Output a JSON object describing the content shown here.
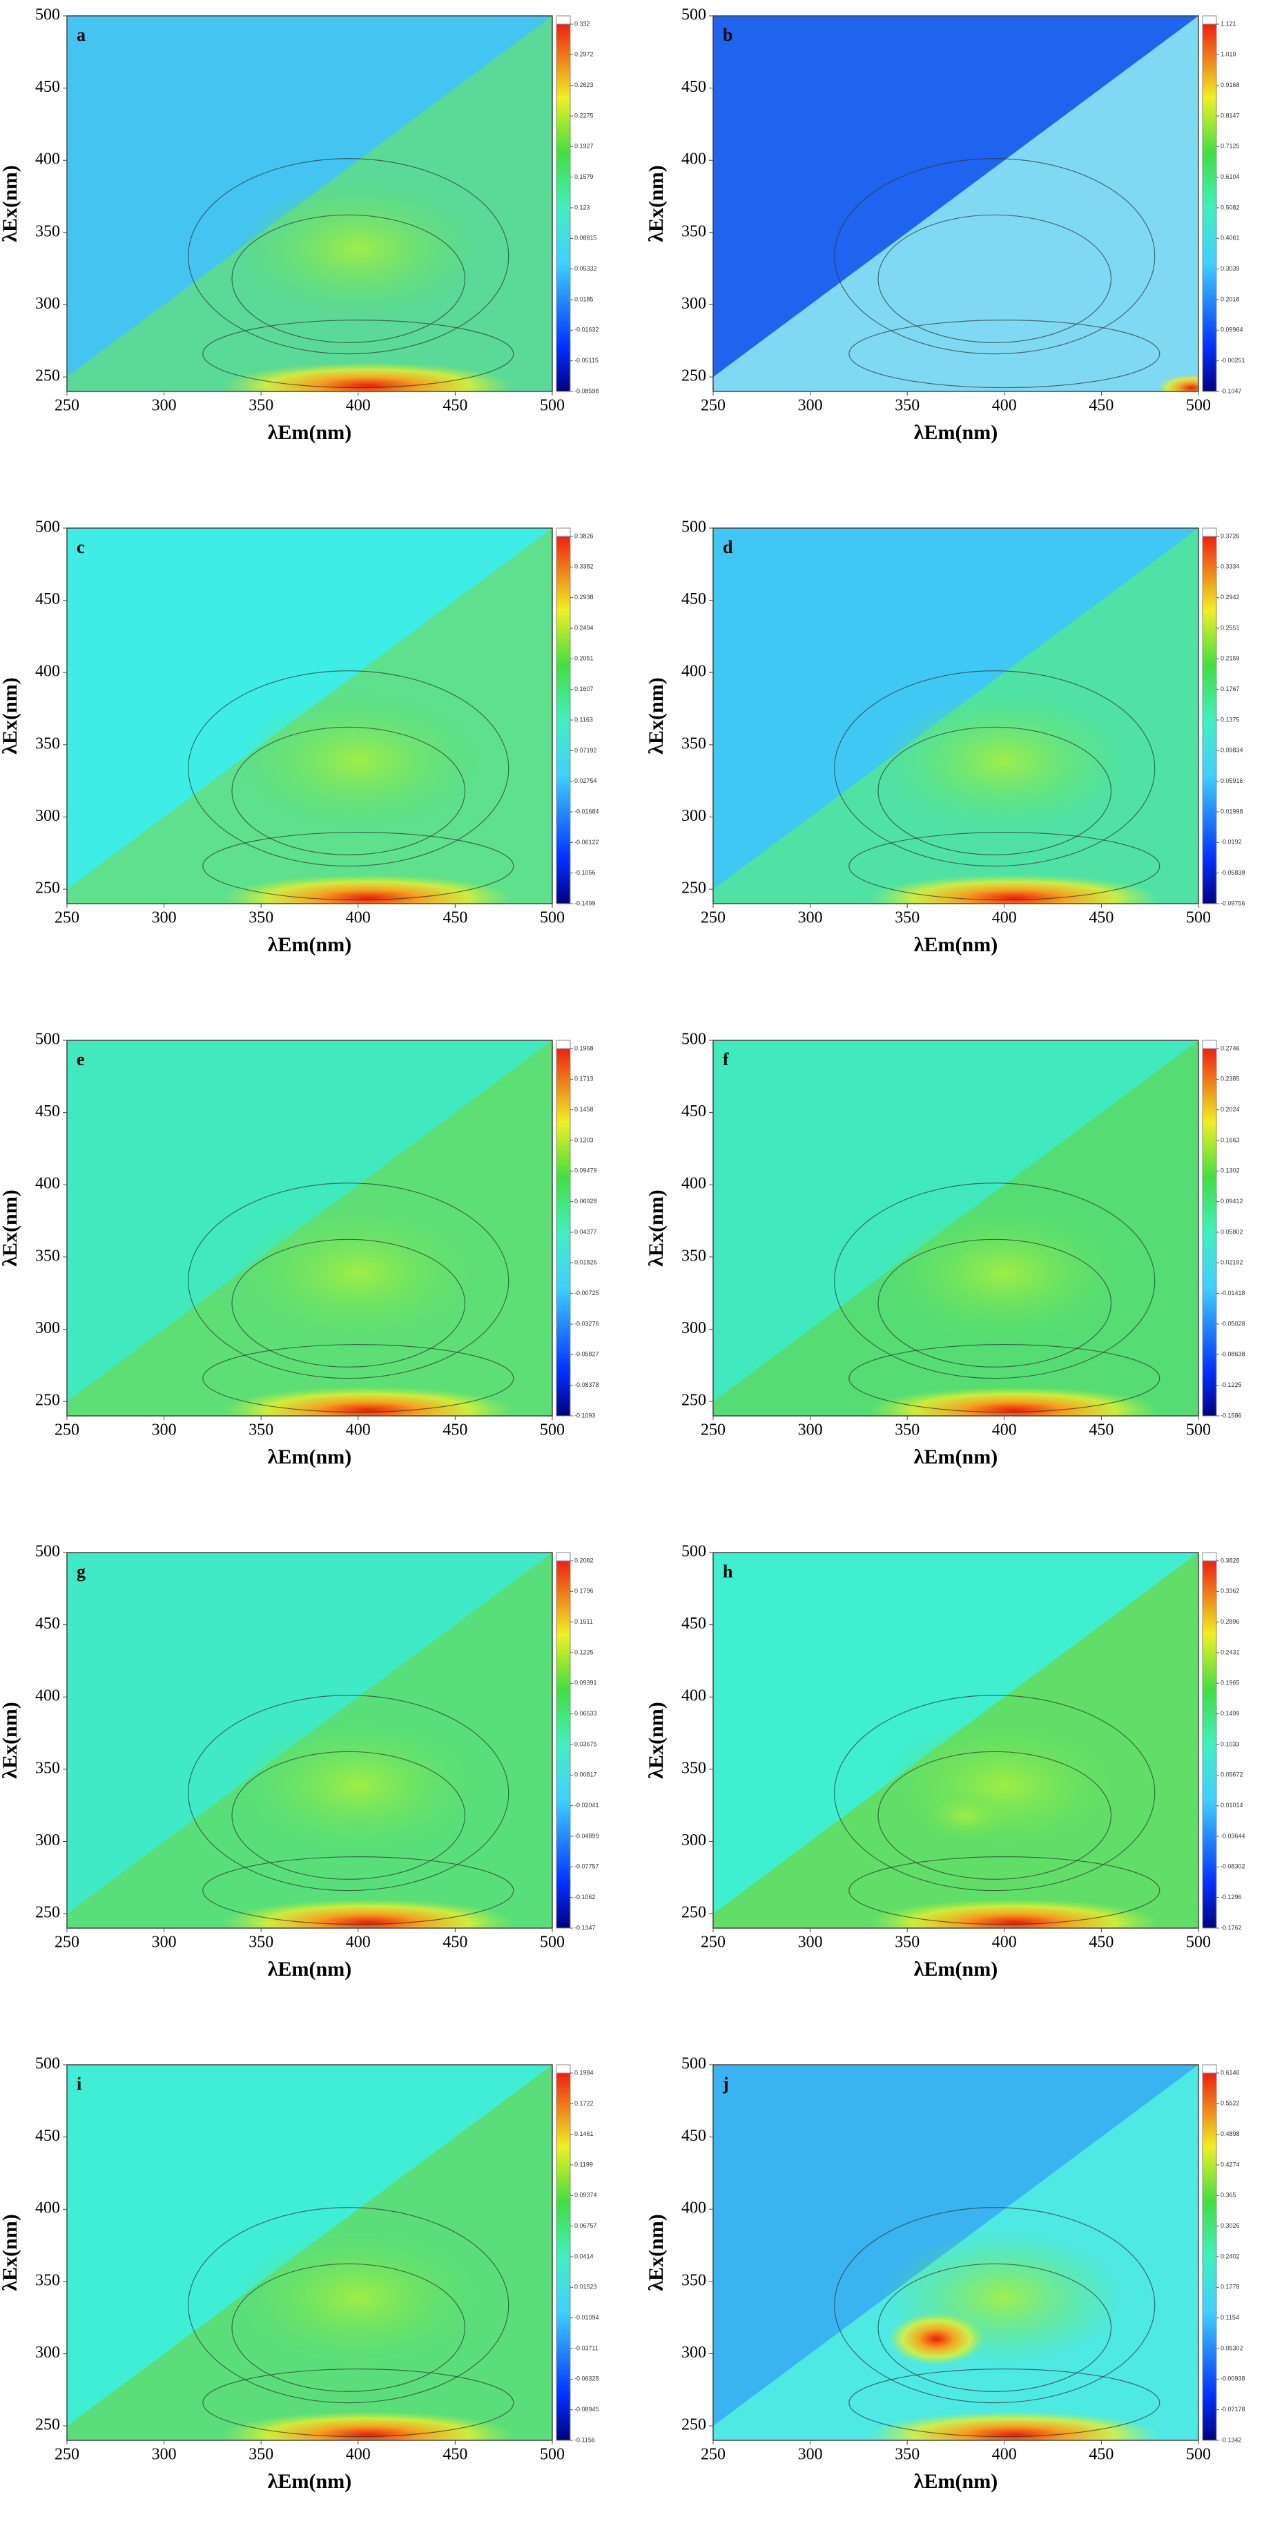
{
  "chart_data": [
    {
      "type": "contour",
      "panel_label": "a",
      "xlabel": "λEm(nm)",
      "ylabel": "λEx(nm)",
      "xlim": [
        250,
        500
      ],
      "ylim": [
        240,
        500
      ],
      "xticks": [
        250,
        300,
        350,
        400,
        450,
        500
      ],
      "yticks": [
        250,
        300,
        350,
        400,
        450,
        500
      ],
      "colors": [
        "#44c4f0",
        "#5edc8c"
      ],
      "colorbar_ticks": [
        0.332,
        0.2972,
        0.2623,
        0.2275,
        0.1927,
        0.1579,
        0.123,
        0.08815,
        0.05332,
        0.0185,
        -0.01632,
        -0.05115,
        -0.08598
      ]
    },
    {
      "type": "contour",
      "panel_label": "b",
      "xlabel": "λEm(nm)",
      "ylabel": "λEx(nm)",
      "xlim": [
        250,
        500
      ],
      "ylim": [
        240,
        500
      ],
      "xticks": [
        250,
        300,
        350,
        400,
        450,
        500
      ],
      "yticks": [
        250,
        300,
        350,
        400,
        450,
        500
      ],
      "colors": [
        "#1f64ee",
        "#8ae6f2"
      ],
      "colorbar_ticks": [
        1.121,
        1.019,
        0.9168,
        0.8147,
        0.7125,
        0.6104,
        0.5082,
        0.4061,
        0.3039,
        0.2018,
        0.09964,
        -0.00251,
        -0.1047
      ]
    },
    {
      "type": "contour",
      "panel_label": "c",
      "xlabel": "λEm(nm)",
      "ylabel": "λEx(nm)",
      "xlim": [
        250,
        500
      ],
      "ylim": [
        240,
        500
      ],
      "xticks": [
        250,
        300,
        350,
        400,
        450,
        500
      ],
      "yticks": [
        250,
        300,
        350,
        400,
        450,
        500
      ],
      "colors": [
        "#3eeee6",
        "#62de82"
      ],
      "colorbar_ticks": [
        0.3826,
        0.3382,
        0.2938,
        0.2494,
        0.2051,
        0.1607,
        0.1163,
        0.07192,
        0.02754,
        -0.01684,
        -0.06122,
        -0.1056,
        -0.1499
      ]
    },
    {
      "type": "contour",
      "panel_label": "d",
      "xlabel": "λEm(nm)",
      "ylabel": "λEx(nm)",
      "xlim": [
        250,
        500
      ],
      "ylim": [
        240,
        500
      ],
      "xticks": [
        250,
        300,
        350,
        400,
        450,
        500
      ],
      "yticks": [
        250,
        300,
        350,
        400,
        450,
        500
      ],
      "colors": [
        "#40c8f4",
        "#52e49c"
      ],
      "colorbar_ticks": [
        0.3726,
        0.3334,
        0.2942,
        0.2551,
        0.2159,
        0.1767,
        0.1375,
        0.09834,
        0.05916,
        0.01998,
        -0.0192,
        -0.05838,
        -0.09756
      ]
    },
    {
      "type": "contour",
      "panel_label": "e",
      "xlabel": "λEm(nm)",
      "ylabel": "λEx(nm)",
      "xlim": [
        250,
        500
      ],
      "ylim": [
        240,
        500
      ],
      "xticks": [
        250,
        300,
        350,
        400,
        450,
        500
      ],
      "yticks": [
        250,
        300,
        350,
        400,
        450,
        500
      ],
      "colors": [
        "#40eabe",
        "#62de6e"
      ],
      "colorbar_ticks": [
        0.1968,
        0.1713,
        0.1458,
        0.1203,
        0.09479,
        0.06928,
        0.04377,
        0.01826,
        -0.00725,
        -0.03276,
        -0.05827,
        -0.08378,
        -0.1093
      ]
    },
    {
      "type": "contour",
      "panel_label": "f",
      "xlabel": "λEm(nm)",
      "ylabel": "λEx(nm)",
      "xlim": [
        250,
        500
      ],
      "ylim": [
        240,
        500
      ],
      "xticks": [
        250,
        300,
        350,
        400,
        450,
        500
      ],
      "yticks": [
        250,
        300,
        350,
        400,
        450,
        500
      ],
      "colors": [
        "#40eabe",
        "#58dc6c"
      ],
      "colorbar_ticks": [
        0.2746,
        0.2385,
        0.2024,
        0.1663,
        0.1302,
        0.09412,
        0.05802,
        0.02192,
        -0.01418,
        -0.05028,
        -0.08638,
        -0.1225,
        -0.1586
      ]
    },
    {
      "type": "contour",
      "panel_label": "g",
      "xlabel": "λEm(nm)",
      "ylabel": "λEx(nm)",
      "xlim": [
        250,
        500
      ],
      "ylim": [
        240,
        500
      ],
      "xticks": [
        250,
        300,
        350,
        400,
        450,
        500
      ],
      "yticks": [
        250,
        300,
        350,
        400,
        450,
        500
      ],
      "colors": [
        "#40eac6",
        "#5cde70"
      ],
      "colorbar_ticks": [
        0.2082,
        0.1796,
        0.1511,
        0.1225,
        0.09391,
        0.06533,
        0.03675,
        0.00817,
        -0.02041,
        -0.04899,
        -0.07757,
        -0.1062,
        -0.1347
      ]
    },
    {
      "type": "contour",
      "panel_label": "h",
      "xlabel": "λEm(nm)",
      "ylabel": "λEx(nm)",
      "xlim": [
        250,
        500
      ],
      "ylim": [
        240,
        500
      ],
      "xticks": [
        250,
        300,
        350,
        400,
        450,
        500
      ],
      "yticks": [
        250,
        300,
        350,
        400,
        450,
        500
      ],
      "colors": [
        "#40eed0",
        "#64dc5c"
      ],
      "colorbar_ticks": [
        0.3828,
        0.3362,
        0.2896,
        0.2431,
        0.1965,
        0.1499,
        0.1033,
        0.05672,
        0.01014,
        -0.03644,
        -0.08302,
        -0.1296,
        -0.1762
      ]
    },
    {
      "type": "contour",
      "panel_label": "i",
      "xlabel": "λEm(nm)",
      "ylabel": "λEx(nm)",
      "xlim": [
        250,
        500
      ],
      "ylim": [
        240,
        500
      ],
      "xticks": [
        250,
        300,
        350,
        400,
        450,
        500
      ],
      "yticks": [
        250,
        300,
        350,
        400,
        450,
        500
      ],
      "colors": [
        "#40eed6",
        "#5edc70"
      ],
      "colorbar_ticks": [
        0.1984,
        0.1722,
        0.1461,
        0.1199,
        0.09374,
        0.06757,
        0.0414,
        0.01523,
        -0.01094,
        -0.03711,
        -0.06328,
        -0.08945,
        -0.1156
      ]
    },
    {
      "type": "contour",
      "panel_label": "j",
      "xlabel": "λEm(nm)",
      "ylabel": "λEx(nm)",
      "xlim": [
        250,
        500
      ],
      "ylim": [
        240,
        500
      ],
      "xticks": [
        250,
        300,
        350,
        400,
        450,
        500
      ],
      "yticks": [
        250,
        300,
        350,
        400,
        450,
        500
      ],
      "colors": [
        "#3ab4f0",
        "#52eee2"
      ],
      "colorbar_ticks": [
        0.6146,
        0.5522,
        0.4898,
        0.4274,
        0.365,
        0.3026,
        0.2402,
        0.1778,
        0.1154,
        0.05302,
        -0.00938,
        -0.07178,
        -0.1342
      ]
    }
  ]
}
